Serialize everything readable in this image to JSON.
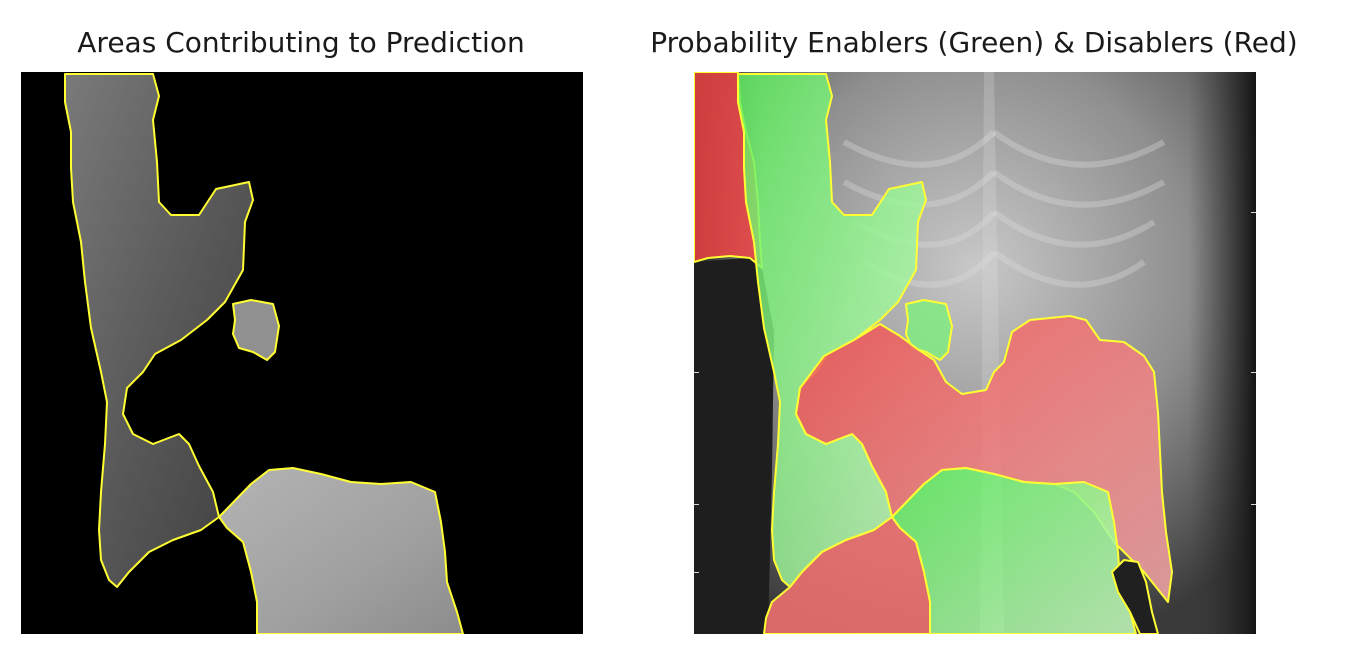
{
  "panels": {
    "left": {
      "title": "Areas Contributing to Prediction",
      "background": "#000000",
      "boundary_color": "#ffff33"
    },
    "right": {
      "title": "Probability Enablers (Green) & Disablers (Red)",
      "enabler_color": "#33ff33",
      "disabler_color": "#ff3333",
      "boundary_color": "#ffff33"
    }
  }
}
